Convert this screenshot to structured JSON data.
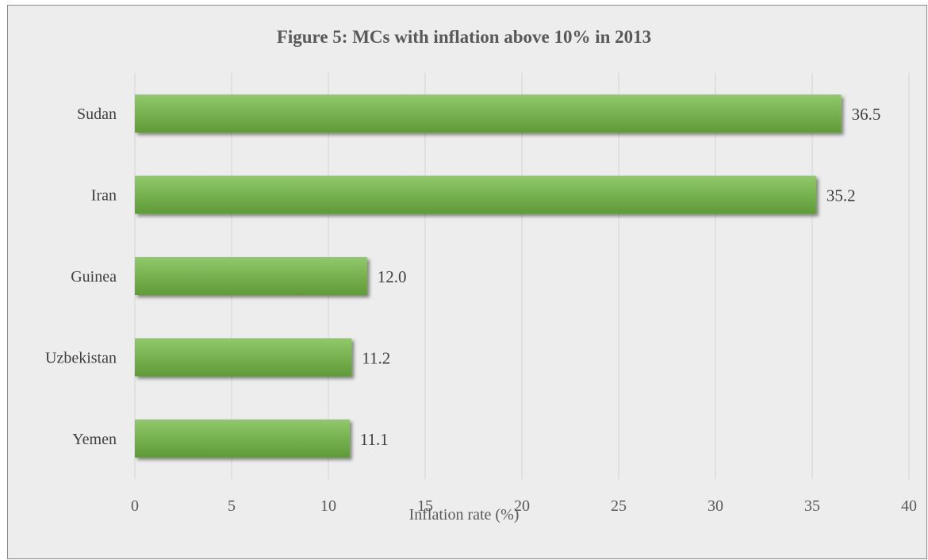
{
  "chart_data": {
    "type": "bar",
    "orientation": "horizontal",
    "title": "Figure 5: MCs with inflation above 10% in 2013",
    "xlabel": "Inflation rate (%)",
    "ylabel": "",
    "categories": [
      "Sudan",
      "Iran",
      "Guinea",
      "Uzbekistan",
      "Yemen"
    ],
    "values": [
      36.5,
      35.2,
      12.0,
      11.2,
      11.1
    ],
    "data_labels": [
      "36.5",
      "35.2",
      "12.0",
      "11.2",
      "11.1"
    ],
    "xlim": [
      0,
      40
    ],
    "x_ticks": [
      0,
      5,
      10,
      15,
      20,
      25,
      30,
      35,
      40
    ],
    "grid": true,
    "legend": "none",
    "colors": {
      "bar_light": "#8fc96a",
      "bar_dark": "#5f9a37",
      "background": "#ededed",
      "gridline": "#d4d4d4",
      "border": "#8a8a8a",
      "title": "#595959"
    }
  }
}
